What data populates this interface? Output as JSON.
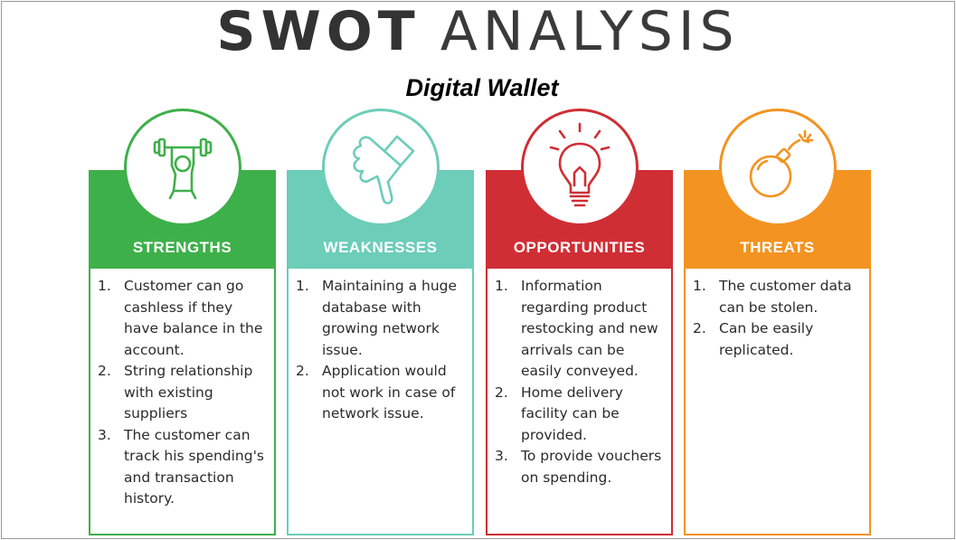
{
  "header": {
    "title_bold": "SWOT",
    "title_light": "ANALYSIS",
    "subtitle": "Digital Wallet"
  },
  "cards": [
    {
      "label": "STRENGTHS",
      "color": "#3eb04a",
      "icon": "weightlifter-icon",
      "items": [
        "Customer can go cashless if they have balance in the account.",
        "String relationship with existing suppliers",
        "The customer can track his spending's and transaction history."
      ]
    },
    {
      "label": "WEAKNESSES",
      "color": "#6ccdb9",
      "icon": "thumbs-down-icon",
      "items": [
        "Maintaining a huge database with growing network issue.",
        "Application would not work in case of network issue."
      ]
    },
    {
      "label": "OPPORTUNITIES",
      "color": "#cf2e35",
      "icon": "lightbulb-icon",
      "items": [
        "Information regarding product restocking and new arrivals can be easily conveyed.",
        "Home delivery facility can be provided.",
        "To provide vouchers on spending."
      ]
    },
    {
      "label": "THREATS",
      "color": "#f39321",
      "icon": "bomb-icon",
      "items": [
        "The customer data can be stolen.",
        "Can be easily replicated."
      ]
    }
  ]
}
